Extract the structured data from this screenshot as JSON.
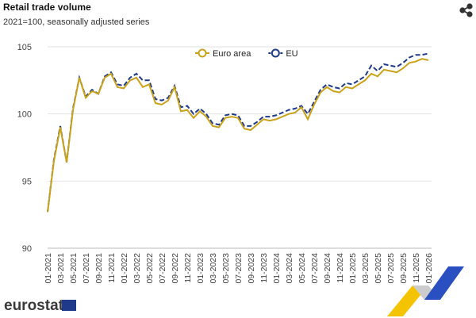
{
  "chart_data": {
    "type": "line",
    "title": "Retail trade volume",
    "subtitle": "2021=100, seasonally adjusted series",
    "logo": "eurostat",
    "categories": [
      "01-2021",
      null,
      "03-2021",
      null,
      "05-2021",
      null,
      "07-2021",
      null,
      "09-2021",
      null,
      "11-2021",
      null,
      "01-2022",
      null,
      "03-2022",
      null,
      "05-2022",
      null,
      "07-2022",
      null,
      "09-2022",
      null,
      "11-2022",
      null,
      "01-2023",
      null,
      "03-2023",
      null,
      "05-2023",
      null,
      "07-2023",
      null,
      "09-2023",
      null,
      "11-2023",
      null,
      "01-2024",
      null,
      "03-2024",
      null,
      "05-2024",
      null,
      "07-2024",
      null,
      "09-2024",
      null,
      "11-2024",
      null,
      "01-2025",
      null,
      "03-2025",
      null,
      "05-2025",
      null,
      "07-2025",
      null,
      "09-2025",
      null,
      "11-2025",
      null,
      "01-2026"
    ],
    "series": [
      {
        "name": "Euro area",
        "color": "#c9a21a",
        "dash": false,
        "values": [
          92.7,
          96.5,
          99.0,
          96.4,
          100.3,
          102.7,
          101.2,
          101.7,
          101.5,
          102.7,
          103.0,
          102.0,
          101.9,
          102.5,
          102.7,
          102.0,
          102.2,
          100.8,
          100.7,
          101.0,
          102.0,
          100.2,
          100.3,
          99.7,
          100.2,
          99.8,
          99.1,
          99.0,
          99.7,
          99.8,
          99.7,
          98.9,
          98.8,
          99.2,
          99.6,
          99.5,
          99.6,
          99.8,
          100.0,
          100.1,
          100.5,
          99.6,
          100.7,
          101.6,
          102.0,
          101.7,
          101.6,
          102.0,
          101.9,
          102.2,
          102.5,
          103.0,
          102.8,
          103.3,
          103.2,
          103.1,
          103.4,
          103.8,
          103.9,
          104.1,
          104.0
        ]
      },
      {
        "name": "EU",
        "color": "#1f3a8a",
        "dash": true,
        "values": [
          92.7,
          96.6,
          99.1,
          96.4,
          100.4,
          102.7,
          101.3,
          101.8,
          101.5,
          102.8,
          103.1,
          102.2,
          102.1,
          102.7,
          103.0,
          102.5,
          102.5,
          101.1,
          101.0,
          101.2,
          102.1,
          100.5,
          100.6,
          100.0,
          100.4,
          100.0,
          99.3,
          99.2,
          99.9,
          100.0,
          99.9,
          99.1,
          99.1,
          99.4,
          99.8,
          99.8,
          99.9,
          100.1,
          100.3,
          100.4,
          100.6,
          100.0,
          100.9,
          101.8,
          102.2,
          102.0,
          101.9,
          102.3,
          102.2,
          102.5,
          102.8,
          103.6,
          103.2,
          103.7,
          103.6,
          103.5,
          103.8,
          104.2,
          104.4,
          104.4,
          104.5
        ]
      }
    ],
    "ylim": [
      90,
      105
    ],
    "yticks": [
      90,
      95,
      100,
      105
    ],
    "grid": true
  }
}
